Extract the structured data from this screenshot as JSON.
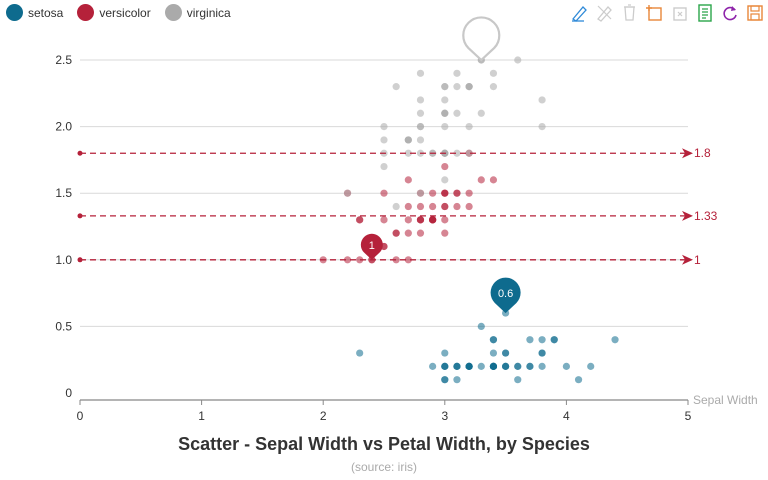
{
  "toolbar": {
    "tools": [
      {
        "name": "mark-line-icon",
        "color": "#2f8ad8"
      },
      {
        "name": "mark-undo-icon",
        "color": "#cccccc"
      },
      {
        "name": "mark-clear-icon",
        "color": "#cccccc"
      },
      {
        "name": "zoom-icon",
        "color": "#e8873a"
      },
      {
        "name": "zoom-reset-icon",
        "color": "#cccccc"
      },
      {
        "name": "data-view-icon",
        "color": "#2aa54a"
      },
      {
        "name": "restore-icon",
        "color": "#8e24aa"
      },
      {
        "name": "save-image-icon",
        "color": "#e8873a"
      }
    ]
  },
  "chart_data": {
    "type": "scatter",
    "title": "Scatter - Sepal Width vs Petal Width, by Species",
    "subtitle": "(source: iris)",
    "xlabel": "Sepal Width",
    "ylabel": "",
    "xlim": [
      0,
      5
    ],
    "ylim": [
      0,
      2.5
    ],
    "x_ticks": [
      "0",
      "1",
      "2",
      "3",
      "4",
      "5"
    ],
    "y_ticks": [
      "0",
      "0.5",
      "1.0",
      "1.5",
      "2.0",
      "2.5"
    ],
    "grid": "horizontal",
    "legend": "top-left",
    "series": [
      {
        "name": "setosa",
        "color": "#0e6b8e",
        "points": [
          [
            3.5,
            0.2
          ],
          [
            3.0,
            0.2
          ],
          [
            3.2,
            0.2
          ],
          [
            3.1,
            0.2
          ],
          [
            3.6,
            0.2
          ],
          [
            3.9,
            0.4
          ],
          [
            3.4,
            0.3
          ],
          [
            3.4,
            0.2
          ],
          [
            2.9,
            0.2
          ],
          [
            3.1,
            0.1
          ],
          [
            3.7,
            0.2
          ],
          [
            3.4,
            0.2
          ],
          [
            3.0,
            0.1
          ],
          [
            3.0,
            0.1
          ],
          [
            4.0,
            0.2
          ],
          [
            4.4,
            0.4
          ],
          [
            3.9,
            0.4
          ],
          [
            3.5,
            0.3
          ],
          [
            3.8,
            0.3
          ],
          [
            3.8,
            0.3
          ],
          [
            3.4,
            0.2
          ],
          [
            3.7,
            0.4
          ],
          [
            3.6,
            0.2
          ],
          [
            3.3,
            0.5
          ],
          [
            3.4,
            0.2
          ],
          [
            3.0,
            0.2
          ],
          [
            3.4,
            0.4
          ],
          [
            3.5,
            0.2
          ],
          [
            3.4,
            0.2
          ],
          [
            3.2,
            0.2
          ],
          [
            3.1,
            0.2
          ],
          [
            3.4,
            0.4
          ],
          [
            4.1,
            0.1
          ],
          [
            4.2,
            0.2
          ],
          [
            3.1,
            0.2
          ],
          [
            3.2,
            0.2
          ],
          [
            3.5,
            0.2
          ],
          [
            3.6,
            0.1
          ],
          [
            3.0,
            0.2
          ],
          [
            3.4,
            0.2
          ],
          [
            3.5,
            0.3
          ],
          [
            2.3,
            0.3
          ],
          [
            3.2,
            0.2
          ],
          [
            3.5,
            0.6
          ],
          [
            3.8,
            0.4
          ],
          [
            3.0,
            0.3
          ],
          [
            3.8,
            0.2
          ],
          [
            3.2,
            0.2
          ],
          [
            3.7,
            0.2
          ],
          [
            3.3,
            0.2
          ]
        ],
        "annotations": [
          {
            "label": "0.6",
            "x": 3.5,
            "y": 0.6
          }
        ]
      },
      {
        "name": "versicolor",
        "color": "#b5213a",
        "points": [
          [
            3.2,
            1.4
          ],
          [
            3.2,
            1.5
          ],
          [
            3.1,
            1.5
          ],
          [
            2.3,
            1.3
          ],
          [
            2.8,
            1.5
          ],
          [
            2.8,
            1.3
          ],
          [
            3.3,
            1.6
          ],
          [
            2.4,
            1.0
          ],
          [
            2.9,
            1.3
          ],
          [
            2.7,
            1.4
          ],
          [
            2.0,
            1.0
          ],
          [
            3.0,
            1.5
          ],
          [
            2.2,
            1.0
          ],
          [
            2.9,
            1.4
          ],
          [
            2.9,
            1.3
          ],
          [
            3.1,
            1.4
          ],
          [
            3.0,
            1.5
          ],
          [
            2.7,
            1.0
          ],
          [
            2.2,
            1.5
          ],
          [
            2.5,
            1.1
          ],
          [
            3.2,
            1.8
          ],
          [
            2.8,
            1.3
          ],
          [
            2.5,
            1.5
          ],
          [
            2.8,
            1.2
          ],
          [
            2.9,
            1.3
          ],
          [
            3.0,
            1.4
          ],
          [
            2.8,
            1.4
          ],
          [
            3.0,
            1.7
          ],
          [
            2.9,
            1.5
          ],
          [
            2.6,
            1.0
          ],
          [
            2.4,
            1.1
          ],
          [
            2.4,
            1.0
          ],
          [
            2.7,
            1.2
          ],
          [
            2.7,
            1.6
          ],
          [
            3.0,
            1.5
          ],
          [
            3.4,
            1.6
          ],
          [
            3.1,
            1.5
          ],
          [
            2.3,
            1.3
          ],
          [
            3.0,
            1.3
          ],
          [
            2.5,
            1.3
          ],
          [
            2.6,
            1.2
          ],
          [
            3.0,
            1.4
          ],
          [
            2.6,
            1.2
          ],
          [
            2.3,
            1.0
          ],
          [
            2.7,
            1.3
          ],
          [
            3.0,
            1.2
          ],
          [
            2.9,
            1.3
          ],
          [
            2.9,
            1.3
          ],
          [
            2.5,
            1.1
          ],
          [
            2.8,
            1.3
          ]
        ],
        "annotations": [
          {
            "label": "1",
            "x": 2.4,
            "y": 1.0
          }
        ]
      },
      {
        "name": "virginica",
        "color": "#aaaaaa",
        "points": [
          [
            3.3,
            2.5
          ],
          [
            2.7,
            1.9
          ],
          [
            3.0,
            2.1
          ],
          [
            2.9,
            1.8
          ],
          [
            3.0,
            2.2
          ],
          [
            3.0,
            2.1
          ],
          [
            2.5,
            1.7
          ],
          [
            2.9,
            1.8
          ],
          [
            2.5,
            1.8
          ],
          [
            3.6,
            2.5
          ],
          [
            3.2,
            2.0
          ],
          [
            2.7,
            1.9
          ],
          [
            3.0,
            2.1
          ],
          [
            2.5,
            2.0
          ],
          [
            2.8,
            2.4
          ],
          [
            3.2,
            2.3
          ],
          [
            3.0,
            1.8
          ],
          [
            3.8,
            2.2
          ],
          [
            2.6,
            2.3
          ],
          [
            2.2,
            1.5
          ],
          [
            3.2,
            2.3
          ],
          [
            2.8,
            2.0
          ],
          [
            2.8,
            2.0
          ],
          [
            2.7,
            1.8
          ],
          [
            3.3,
            2.1
          ],
          [
            3.2,
            1.8
          ],
          [
            2.8,
            1.8
          ],
          [
            3.0,
            1.8
          ],
          [
            2.8,
            2.1
          ],
          [
            3.0,
            1.6
          ],
          [
            2.8,
            1.9
          ],
          [
            3.8,
            2.0
          ],
          [
            2.8,
            2.2
          ],
          [
            2.8,
            1.5
          ],
          [
            2.6,
            1.4
          ],
          [
            3.0,
            2.3
          ],
          [
            3.4,
            2.4
          ],
          [
            3.1,
            1.8
          ],
          [
            3.0,
            1.8
          ],
          [
            3.1,
            2.1
          ],
          [
            3.1,
            2.4
          ],
          [
            3.1,
            2.3
          ],
          [
            2.7,
            1.9
          ],
          [
            3.2,
            2.3
          ],
          [
            3.3,
            2.5
          ],
          [
            3.0,
            2.3
          ],
          [
            2.5,
            1.9
          ],
          [
            3.0,
            2.0
          ],
          [
            3.4,
            2.3
          ],
          [
            3.0,
            1.8
          ]
        ],
        "annotations": [
          {
            "label": "",
            "x": 3.3,
            "y": 2.5
          }
        ]
      }
    ],
    "mark_lines": [
      {
        "value": 1.8,
        "label": "1.8",
        "color": "#b5213a"
      },
      {
        "value": 1.33,
        "label": "1.33",
        "color": "#b5213a"
      },
      {
        "value": 1.0,
        "label": "1",
        "color": "#b5213a"
      }
    ]
  }
}
